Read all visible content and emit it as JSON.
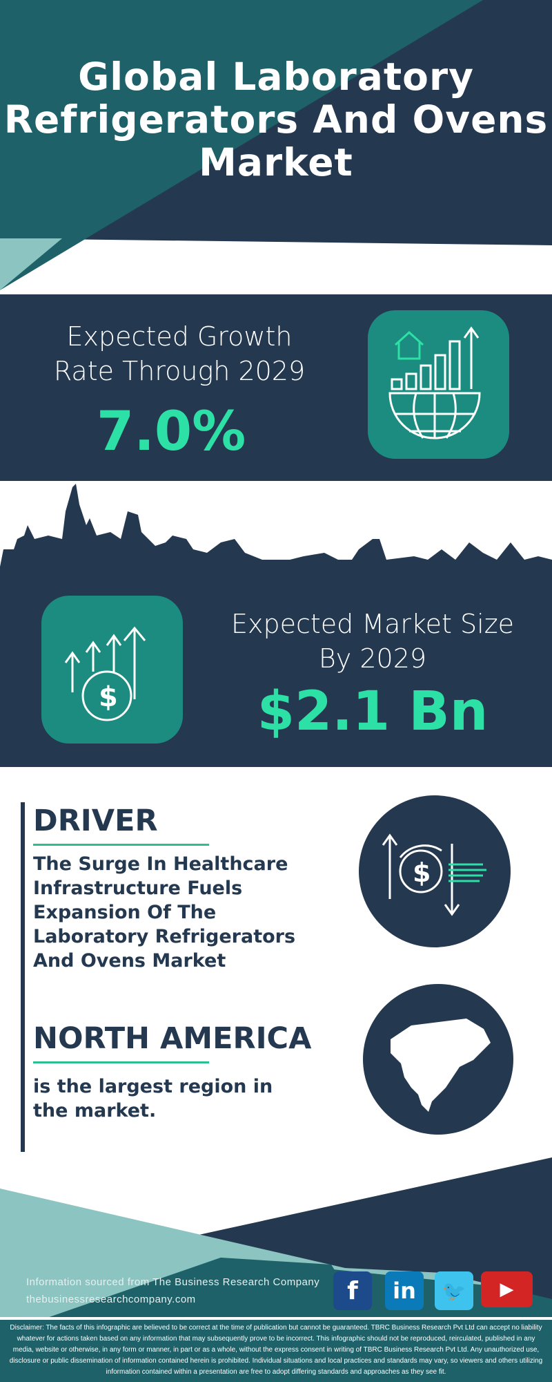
{
  "header": {
    "title": "Global Laboratory Refrigerators And Ovens Market"
  },
  "growth": {
    "label_line1": "Expected Growth",
    "label_line2": "Rate Through 2029",
    "value": "7.0%",
    "icon": "globe-growth-chart-icon"
  },
  "market": {
    "label_line1": "Expected Market Size",
    "label_line2": "By 2029",
    "value": "$2.1 Bn",
    "icon": "dollar-coin-arrows-icon"
  },
  "driver": {
    "heading": "DRIVER",
    "text": "The Surge In Healthcare Infrastructure Fuels Expansion Of The Laboratory Refrigerators And Ovens Market",
    "icon": "dollar-exchange-icon"
  },
  "region": {
    "heading": "NORTH AMERICA",
    "text": "is the largest region in the market.",
    "icon": "north-america-map-icon"
  },
  "footer": {
    "source": "Information sourced from The Business Research Company",
    "website": "thebusinessresearchcompany.com",
    "social": [
      "facebook",
      "linkedin",
      "twitter",
      "youtube"
    ],
    "disclaimer": "Disclaimer: The facts of this infographic are believed to be correct at the time of publication but cannot be guaranteed. TBRC Business Research Pvt Ltd can accept no liability whatever for actions taken based on any information that may subsequently prove to be incorrect. This infographic should not be reproduced, reirculated, published in any media, website or otherwise, in any form or manner, in part or as a whole, without the express consent in writing of TBRC Business Research Pvt Ltd. Any unauthorized use, disclosure or public dissemination of information contained herein is prohibited. Individual situations and local practices and standards may vary, so viewers and others utilizing information contained within a presentation are free to adopt differing standards and approaches as they see fit."
  },
  "colors": {
    "navy": "#243850",
    "teal": "#1e6168",
    "accent": "#2de0a6",
    "icon_box": "#1c8c80",
    "light_teal": "#8bc4c0"
  }
}
